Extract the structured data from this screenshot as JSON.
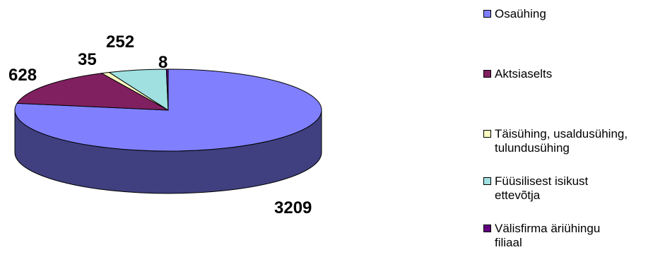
{
  "chart_data": {
    "type": "pie",
    "style": "3d",
    "start_angle_deg": 90,
    "direction": "clockwise",
    "slices": [
      {
        "label": "Osaühing",
        "value": 3209,
        "color": "#8080FF",
        "side_color": "#404080"
      },
      {
        "label": "Aktsiaselts",
        "value": 628,
        "color": "#802060",
        "side_color": "#401030"
      },
      {
        "label": "Täisühing, usaldusühing, tulundusühing",
        "value": 35,
        "color": "#FFFFC0",
        "side_color": "#808060"
      },
      {
        "label": "Füüsilisest isikust ettevõtja",
        "value": 252,
        "color": "#A0E0E0",
        "side_color": "#507070"
      },
      {
        "label": "Välisfirma äriühingu filiaal",
        "value": 8,
        "color": "#600080",
        "side_color": "#300040"
      }
    ],
    "data_labels": [
      "3209",
      "628",
      "35",
      "252",
      "8"
    ],
    "legend_position": "right"
  },
  "legend": {
    "items": [
      {
        "text": "Osaühing",
        "color": "#8080FF"
      },
      {
        "text": "Aktsiaselts",
        "color": "#802060"
      },
      {
        "text": "Täisühing, usaldusühing,\ntulundusühing",
        "color": "#FFFFC0"
      },
      {
        "text": "Füüsilisest isikust\nettevõtja",
        "color": "#A0E0E0"
      },
      {
        "text": "Välisfirma äriühingu\nfiliaal",
        "color": "#600080"
      }
    ]
  }
}
